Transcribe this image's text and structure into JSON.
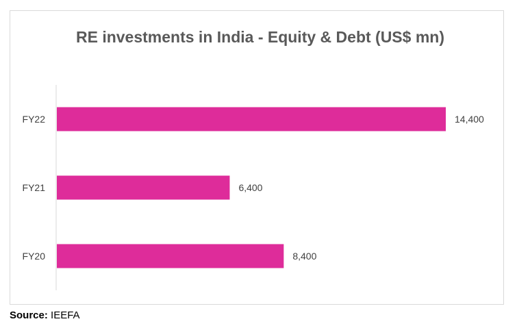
{
  "chart_data": {
    "type": "bar",
    "orientation": "horizontal",
    "title": "RE investments in India - Equity & Debt (US$ mn)",
    "categories": [
      "FY22",
      "FY21",
      "FY20"
    ],
    "values": [
      14400,
      6400,
      8400
    ],
    "data_labels": [
      "14,400",
      "6,400",
      "8,400"
    ],
    "xlim": [
      0,
      16000
    ],
    "grid": false,
    "legend": "none",
    "bar_color": "#DE2C9A"
  },
  "source": {
    "label": "Source:",
    "text": "IEEFA"
  }
}
